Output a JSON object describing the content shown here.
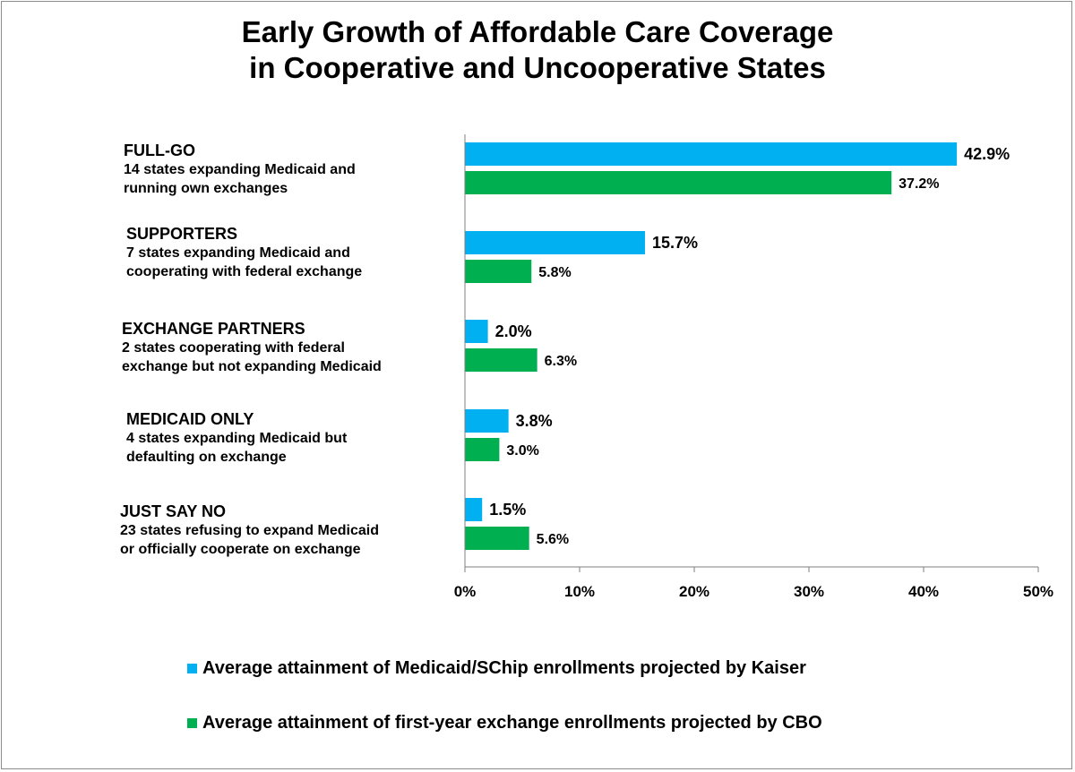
{
  "title_lines": [
    "Early Growth of Affordable Care Coverage",
    "in Cooperative and Uncooperative States"
  ],
  "colors": {
    "kaiser": "#00b0f0",
    "cbo": "#00b050",
    "axis": "#7f7f7f"
  },
  "chart_data": {
    "type": "bar",
    "orientation": "horizontal",
    "title": "Early Growth of Affordable Care Coverage in Cooperative and Uncooperative States",
    "categories": [
      {
        "name": "FULL-GO",
        "desc": [
          "14 states expanding Medicaid and",
          "running own exchanges"
        ]
      },
      {
        "name": "SUPPORTERS",
        "desc": [
          "7 states expanding Medicaid and",
          "cooperating with federal exchange"
        ]
      },
      {
        "name": "EXCHANGE PARTNERS",
        "desc": [
          "2 states cooperating with federal",
          "exchange but not expanding Medicaid"
        ]
      },
      {
        "name": "MEDICAID ONLY",
        "desc": [
          "4 states expanding Medicaid but",
          "defaulting on exchange"
        ]
      },
      {
        "name": "JUST SAY NO",
        "desc": [
          "23 states refusing to expand Medicaid",
          "or officially cooperate on exchange"
        ]
      }
    ],
    "series": [
      {
        "name": "Average attainment of Medicaid/SChip enrollments projected by Kaiser",
        "values": [
          42.9,
          15.7,
          2.0,
          3.8,
          1.5
        ],
        "labels": [
          "42.9%",
          "15.7%",
          "2.0%",
          "3.8%",
          "1.5%"
        ]
      },
      {
        "name": "Average attainment of first-year exchange enrollments projected by CBO",
        "values": [
          37.2,
          5.8,
          6.3,
          3.0,
          5.6
        ],
        "labels": [
          "37.2%",
          "5.8%",
          "6.3%",
          "3.0%",
          "5.6%"
        ]
      }
    ],
    "xlim": [
      0,
      50
    ],
    "xticks": [
      0,
      10,
      20,
      30,
      40,
      50
    ],
    "xtick_labels": [
      "0%",
      "10%",
      "20%",
      "30%",
      "40%",
      "50%"
    ],
    "xlabel": "",
    "ylabel": "",
    "grid": false,
    "legend_position": "bottom"
  }
}
